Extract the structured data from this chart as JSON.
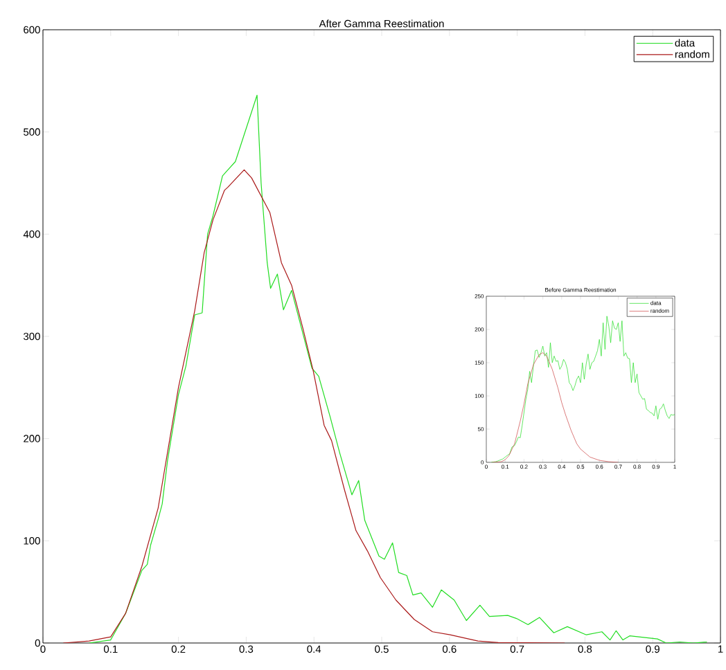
{
  "chart_data": [
    {
      "type": "line",
      "title": "After Gamma Reestimation",
      "xlim": [
        0,
        1
      ],
      "ylim": [
        0,
        600
      ],
      "xticks": [
        0,
        0.1,
        0.2,
        0.3,
        0.4,
        0.5,
        0.6,
        0.7,
        0.8,
        0.9,
        1
      ],
      "yticks": [
        0,
        100,
        200,
        300,
        400,
        500,
        600
      ],
      "legend": "top right",
      "series": [
        {
          "name": "data",
          "color": "#22dd22",
          "x": [
            0.068,
            0.1,
            0.122,
            0.146,
            0.154,
            0.159,
            0.17,
            0.176,
            0.184,
            0.2,
            0.211,
            0.224,
            0.235,
            0.243,
            0.251,
            0.265,
            0.273,
            0.284,
            0.316,
            0.322,
            0.331,
            0.336,
            0.346,
            0.355,
            0.367,
            0.397,
            0.407,
            0.424,
            0.438,
            0.456,
            0.466,
            0.475,
            0.496,
            0.504,
            0.516,
            0.525,
            0.537,
            0.546,
            0.558,
            0.575,
            0.588,
            0.607,
            0.625,
            0.645,
            0.659,
            0.686,
            0.699,
            0.716,
            0.733,
            0.754,
            0.774,
            0.802,
            0.825,
            0.837,
            0.846,
            0.856,
            0.866,
            0.907,
            0.92,
            0.94,
            0.96,
            0.98
          ],
          "values": [
            0,
            3,
            29,
            71,
            77,
            96,
            121,
            136,
            179,
            243,
            271,
            321,
            323,
            400,
            418,
            457,
            463,
            471,
            536,
            450,
            372,
            347,
            361,
            326,
            345,
            269,
            261,
            221,
            186,
            145,
            159,
            120,
            85,
            82,
            98,
            69,
            66,
            47,
            49,
            35,
            52,
            42,
            22,
            37,
            26,
            27,
            24,
            18,
            25,
            10,
            16,
            8,
            11,
            3,
            12,
            3,
            7,
            4,
            0,
            1,
            0,
            1
          ]
        },
        {
          "name": "random",
          "color": "#aa1818",
          "x": [
            0.03,
            0.068,
            0.1,
            0.122,
            0.146,
            0.17,
            0.2,
            0.224,
            0.238,
            0.251,
            0.268,
            0.273,
            0.297,
            0.308,
            0.335,
            0.352,
            0.367,
            0.384,
            0.399,
            0.415,
            0.426,
            0.445,
            0.462,
            0.479,
            0.498,
            0.521,
            0.548,
            0.575,
            0.601,
            0.642,
            0.672,
            0.77
          ],
          "values": [
            0,
            2,
            6,
            29,
            75,
            132,
            250,
            325,
            382,
            414,
            443,
            446,
            463,
            455,
            421,
            372,
            350,
            307,
            266,
            213,
            198,
            150,
            110,
            90,
            64,
            42,
            23,
            11,
            8,
            2,
            0.4,
            0
          ]
        }
      ]
    },
    {
      "type": "line",
      "title": "Before Gamma Reestimation",
      "xlim": [
        0,
        1
      ],
      "ylim": [
        0,
        250
      ],
      "xticks": [
        0,
        0.1,
        0.2,
        0.3,
        0.4,
        0.5,
        0.6,
        0.7,
        0.8,
        0.9,
        1
      ],
      "yticks": [
        0,
        50,
        100,
        150,
        200,
        250
      ],
      "legend": "top right",
      "series": [
        {
          "name": "data",
          "color": "#22dd22",
          "x": [
            0.025,
            0.05,
            0.06,
            0.087,
            0.105,
            0.124,
            0.136,
            0.149,
            0.16,
            0.17,
            0.18,
            0.19,
            0.2,
            0.21,
            0.22,
            0.23,
            0.24,
            0.25,
            0.26,
            0.27,
            0.28,
            0.29,
            0.3,
            0.31,
            0.32,
            0.33,
            0.34,
            0.35,
            0.36,
            0.37,
            0.38,
            0.39,
            0.4,
            0.41,
            0.42,
            0.43,
            0.44,
            0.45,
            0.46,
            0.47,
            0.48,
            0.49,
            0.5,
            0.51,
            0.52,
            0.53,
            0.54,
            0.55,
            0.56,
            0.57,
            0.58,
            0.59,
            0.6,
            0.61,
            0.62,
            0.63,
            0.64,
            0.65,
            0.66,
            0.67,
            0.68,
            0.69,
            0.7,
            0.71,
            0.72,
            0.73,
            0.74,
            0.75,
            0.76,
            0.77,
            0.78,
            0.79,
            0.8,
            0.81,
            0.82,
            0.83,
            0.84,
            0.85,
            0.86,
            0.87,
            0.88,
            0.89,
            0.9,
            0.91,
            0.92,
            0.93,
            0.94,
            0.95,
            0.96,
            0.97,
            0.98,
            0.99,
            1.0
          ],
          "values": [
            0,
            1,
            2,
            5,
            9,
            13,
            23,
            25,
            31,
            38,
            37,
            55,
            75,
            95,
            110,
            137,
            120,
            145,
            168,
            169,
            158,
            165,
            175,
            160,
            165,
            143,
            180,
            150,
            160,
            152,
            153,
            140,
            145,
            155,
            150,
            140,
            120,
            116,
            108,
            115,
            125,
            130,
            120,
            150,
            125,
            148,
            163,
            140,
            150,
            152,
            160,
            168,
            185,
            160,
            210,
            170,
            220,
            205,
            180,
            213,
            202,
            200,
            210,
            182,
            213,
            160,
            165,
            157,
            156,
            120,
            150,
            120,
            133,
            105,
            100,
            95,
            96,
            80,
            78,
            75,
            74,
            70,
            85,
            65,
            80,
            82,
            88,
            78,
            70,
            66,
            72,
            71,
            72
          ]
        },
        {
          "name": "random",
          "color": "#cc4444",
          "x": [
            0.03,
            0.08,
            0.1,
            0.12,
            0.15,
            0.18,
            0.2,
            0.22,
            0.25,
            0.28,
            0.3,
            0.32,
            0.35,
            0.38,
            0.4,
            0.42,
            0.45,
            0.48,
            0.5,
            0.55,
            0.6,
            0.65,
            0.7
          ],
          "values": [
            0,
            1,
            4,
            10,
            28,
            62,
            88,
            118,
            147,
            162,
            165,
            160,
            140,
            112,
            90,
            72,
            48,
            28,
            20,
            8,
            3,
            1,
            0
          ]
        }
      ]
    }
  ]
}
